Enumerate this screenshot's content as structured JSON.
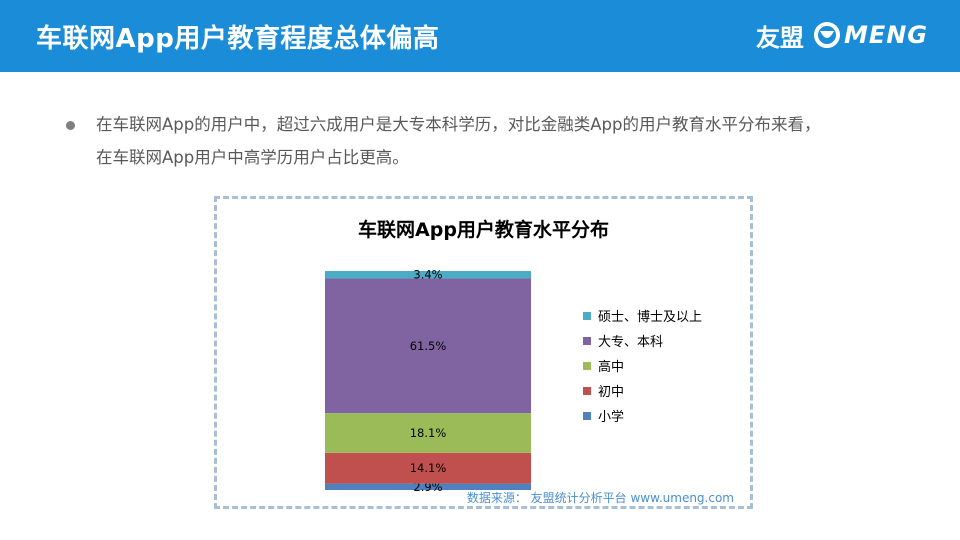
{
  "header": {
    "title": "车联网App用户教育程度总体偏高",
    "brand_cn": "友盟",
    "brand_en": "MENG"
  },
  "intro": {
    "text": "在车联网App的用户中，超过六成用户是大专本科学历，对比金融类App的用户教育水平分布来看，在车联网App用户中高学历用户占比更高。"
  },
  "source": "数据来源： 友盟统计分析平台 www.umeng.com",
  "colors": {
    "header_bg": "#1a8cd8",
    "primary_school": "#4f81bd",
    "junior_high": "#c0504d",
    "senior_high": "#9bbb59",
    "college": "#8064a2",
    "postgraduate": "#4bacc6"
  },
  "chart_data": {
    "type": "bar",
    "stacked": true,
    "percent": true,
    "title": "车联网App用户教育水平分布",
    "categories": [
      ""
    ],
    "series": [
      {
        "name": "小学",
        "values": [
          2.9
        ],
        "label": "2.9%",
        "color": "#4f81bd"
      },
      {
        "name": "初中",
        "values": [
          14.1
        ],
        "label": "14.1%",
        "color": "#c0504d"
      },
      {
        "name": "高中",
        "values": [
          18.1
        ],
        "label": "18.1%",
        "color": "#9bbb59"
      },
      {
        "name": "大专、本科",
        "values": [
          61.5
        ],
        "label": "61.5%",
        "color": "#8064a2"
      },
      {
        "name": "硕士、博士及以上",
        "values": [
          3.4
        ],
        "label": "3.4%",
        "color": "#4bacc6"
      }
    ],
    "ylim": [
      0,
      100
    ],
    "legend_position": "right",
    "grid": false
  }
}
